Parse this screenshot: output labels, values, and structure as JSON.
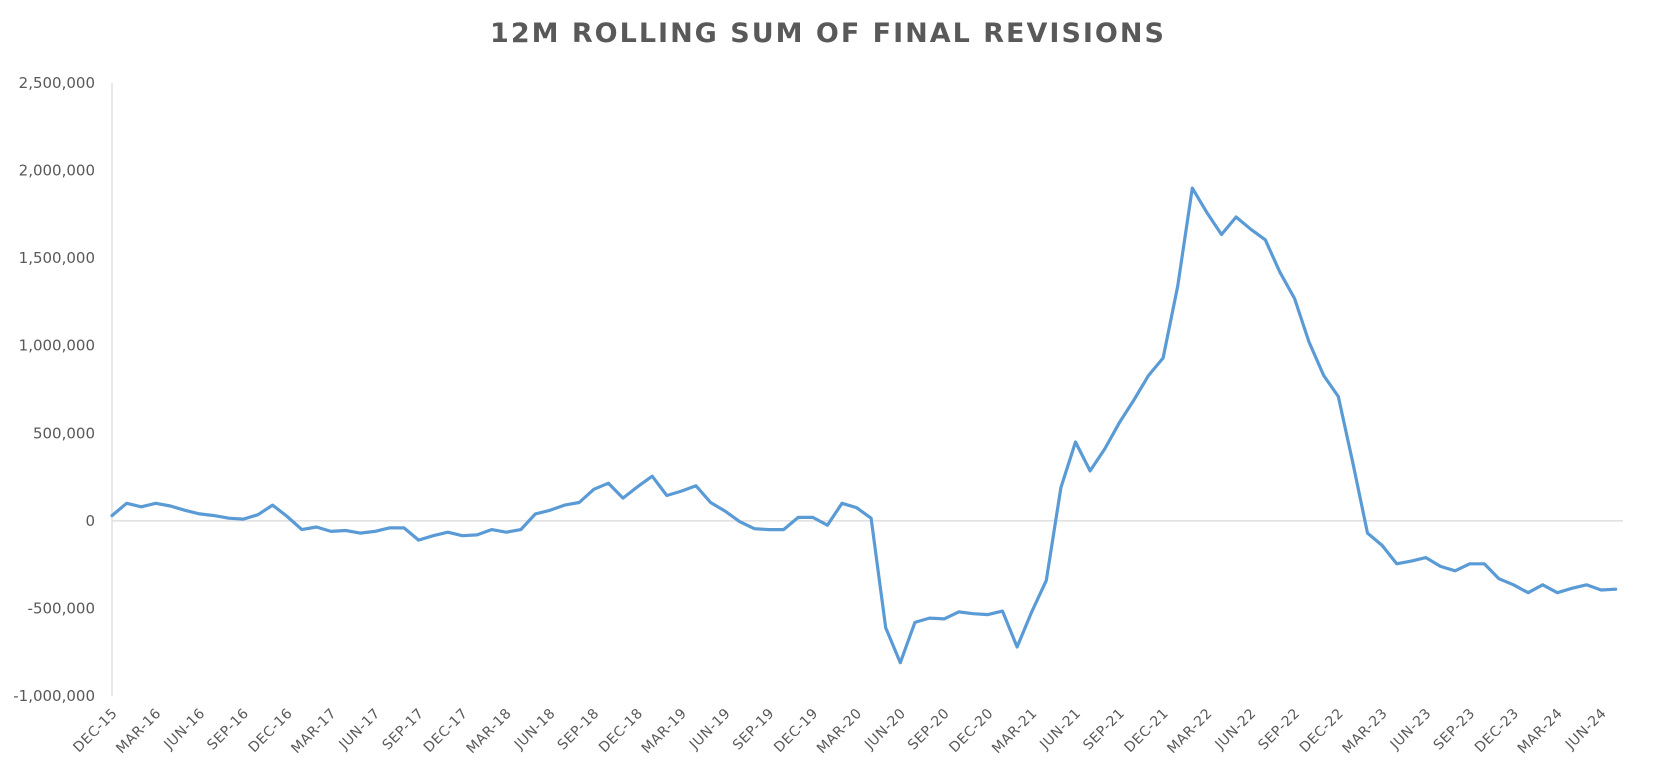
{
  "chart_data": {
    "type": "line",
    "title": "12M ROLLING SUM OF FINAL REVISIONS",
    "xlabel": "",
    "ylabel": "",
    "ylim": [
      -1000000,
      2500000
    ],
    "yticks": [
      2500000,
      2000000,
      1500000,
      1000000,
      500000,
      0,
      -500000,
      -1000000
    ],
    "ytick_labels": [
      "2,500,000",
      "2,000,000",
      "1,500,000",
      "1,000,000",
      "500,000",
      "0",
      "-500,000",
      "-1,000,000"
    ],
    "xtick_labels": [
      "DEC-15",
      "MAR-16",
      "JUN-16",
      "SEP-16",
      "DEC-16",
      "MAR-17",
      "JUN-17",
      "SEP-17",
      "DEC-17",
      "MAR-18",
      "JUN-18",
      "SEP-18",
      "DEC-18",
      "MAR-19",
      "JUN-19",
      "SEP-19",
      "DEC-19",
      "MAR-20",
      "JUN-20",
      "SEP-20",
      "DEC-20",
      "MAR-21",
      "JUN-21",
      "SEP-21",
      "DEC-21",
      "MAR-22",
      "JUN-22",
      "SEP-22",
      "DEC-22",
      "MAR-23",
      "JUN-23",
      "SEP-23",
      "DEC-23",
      "MAR-24",
      "JUN-24"
    ],
    "x": [
      "DEC-15",
      "JAN-16",
      "FEB-16",
      "MAR-16",
      "APR-16",
      "MAY-16",
      "JUN-16",
      "JUL-16",
      "AUG-16",
      "SEP-16",
      "OCT-16",
      "NOV-16",
      "DEC-16",
      "JAN-17",
      "FEB-17",
      "MAR-17",
      "APR-17",
      "MAY-17",
      "JUN-17",
      "JUL-17",
      "AUG-17",
      "SEP-17",
      "OCT-17",
      "NOV-17",
      "DEC-17",
      "JAN-18",
      "FEB-18",
      "MAR-18",
      "APR-18",
      "MAY-18",
      "JUN-18",
      "JUL-18",
      "AUG-18",
      "SEP-18",
      "OCT-18",
      "NOV-18",
      "DEC-18",
      "JAN-19",
      "FEB-19",
      "MAR-19",
      "APR-19",
      "MAY-19",
      "JUN-19",
      "JUL-19",
      "AUG-19",
      "SEP-19",
      "OCT-19",
      "NOV-19",
      "DEC-19",
      "JAN-20",
      "FEB-20",
      "MAR-20",
      "APR-20",
      "MAY-20",
      "JUN-20",
      "JUL-20",
      "AUG-20",
      "SEP-20",
      "OCT-20",
      "NOV-20",
      "DEC-20",
      "JAN-21",
      "FEB-21",
      "MAR-21",
      "APR-21",
      "MAY-21",
      "JUN-21",
      "JUL-21",
      "AUG-21",
      "SEP-21",
      "OCT-21",
      "NOV-21",
      "DEC-21",
      "JAN-22",
      "FEB-22",
      "MAR-22",
      "APR-22",
      "MAY-22",
      "JUN-22",
      "JUL-22",
      "AUG-22",
      "SEP-22",
      "OCT-22",
      "NOV-22",
      "DEC-22",
      "JAN-23",
      "FEB-23",
      "MAR-23",
      "APR-23",
      "MAY-23",
      "JUN-23",
      "JUL-23",
      "AUG-23",
      "SEP-23",
      "OCT-23",
      "NOV-23",
      "DEC-23",
      "JAN-24",
      "FEB-24",
      "MAR-24",
      "APR-24",
      "MAY-24",
      "JUN-24",
      "JUL-24"
    ],
    "series": [
      {
        "values": [
          30000,
          100000,
          80000,
          100000,
          85000,
          60000,
          40000,
          30000,
          15000,
          10000,
          35000,
          90000,
          25000,
          -50000,
          -35000,
          -60000,
          -55000,
          -70000,
          -60000,
          -40000,
          -40000,
          -110000,
          -85000,
          -65000,
          -85000,
          -80000,
          -50000,
          -65000,
          -50000,
          40000,
          60000,
          90000,
          105000,
          180000,
          215000,
          130000,
          195000,
          255000,
          145000,
          170000,
          200000,
          105000,
          55000,
          -5000,
          -45000,
          -50000,
          -50000,
          20000,
          20000,
          -25000,
          100000,
          75000,
          15000,
          -610000,
          -810000,
          -580000,
          -555000,
          -560000,
          -520000,
          -530000,
          -535000,
          -515000,
          -720000,
          -520000,
          -340000,
          190000,
          450000,
          285000,
          410000,
          560000,
          690000,
          830000,
          930000,
          1340000,
          1900000,
          1760000,
          1635000,
          1735000,
          1665000,
          1605000,
          1420000,
          1270000,
          1020000,
          830000,
          710000,
          330000,
          -70000,
          -140000,
          -245000,
          -230000,
          -210000,
          -260000,
          -285000,
          -245000,
          -245000,
          -330000,
          -365000,
          -410000,
          -365000,
          -410000,
          -385000,
          -365000,
          -395000,
          -390000
        ],
        "color": "#5B9BD5"
      }
    ],
    "grid": false,
    "legend": "none",
    "colors": {
      "line": "#5B9BD5",
      "axis": "#D9D9D9",
      "text": "#595959"
    }
  }
}
